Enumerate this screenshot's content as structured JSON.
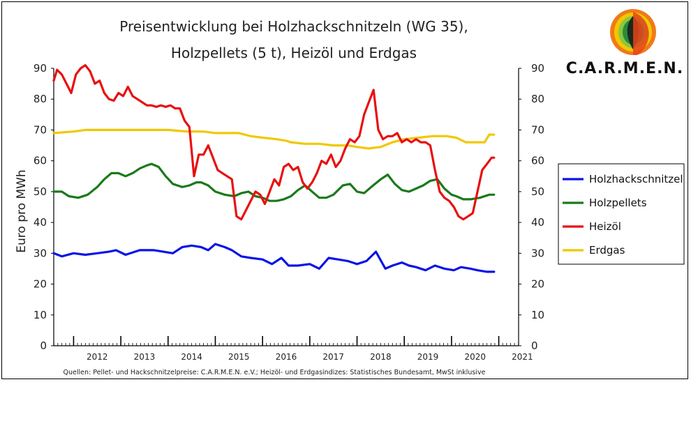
{
  "chart_data": {
    "type": "line",
    "title_lines": [
      "Preisentwicklung bei Holzhackschnitzeln (WG 35),",
      "Holzpellets (5 t), Heizöl und Erdgas"
    ],
    "ylabel": "Euro pro MWh",
    "ylim": [
      0,
      90
    ],
    "yticks": [
      0,
      10,
      20,
      30,
      40,
      50,
      60,
      70,
      80,
      90
    ],
    "xlim": [
      2011.58,
      2021.42
    ],
    "xticks": [
      "2012",
      "2013",
      "2014",
      "2015",
      "2016",
      "2017",
      "2018",
      "2019",
      "2020",
      "2021"
    ],
    "grid": false,
    "legend_position": "right",
    "source": "Quellen: Pellet- und Hackschnitzelpreise: C.A.R.M.E.N. e.V.; Heizöl- und Erdgasindizes: Statistisches Bundesamt, MwSt inklusive",
    "series": [
      {
        "name": "Holzhackschnitzel",
        "color": "#0a14e6",
        "x": [
          2011.58,
          2011.75,
          2012.0,
          2012.25,
          2012.5,
          2012.75,
          2012.9,
          2013.1,
          2013.4,
          2013.7,
          2013.9,
          2014.1,
          2014.3,
          2014.5,
          2014.7,
          2014.85,
          2015.0,
          2015.2,
          2015.35,
          2015.55,
          2015.75,
          2016.0,
          2016.2,
          2016.4,
          2016.55,
          2016.75,
          2017.0,
          2017.2,
          2017.4,
          2017.6,
          2017.8,
          2018.0,
          2018.2,
          2018.4,
          2018.6,
          2018.75,
          2018.95,
          2019.1,
          2019.25,
          2019.45,
          2019.65,
          2019.85,
          2020.05,
          2020.2,
          2020.4,
          2020.55,
          2020.75,
          2020.9
        ],
        "y": [
          30,
          29,
          30,
          29.5,
          30,
          30.5,
          31,
          29.5,
          31,
          31,
          30.5,
          30,
          32,
          32.5,
          32,
          31,
          33,
          32,
          31,
          29,
          28.5,
          28,
          26.5,
          28.5,
          26,
          26,
          26.5,
          25,
          28.5,
          28,
          27.5,
          26.5,
          27.5,
          30.5,
          25,
          26,
          27,
          26,
          25.5,
          24.5,
          26,
          25,
          24.5,
          25.5,
          25,
          24.5,
          24,
          24
        ]
      },
      {
        "name": "Holzpellets",
        "color": "#1a7a1a",
        "x": [
          2011.58,
          2011.75,
          2011.9,
          2012.1,
          2012.3,
          2012.5,
          2012.65,
          2012.8,
          2012.95,
          2013.1,
          2013.25,
          2013.4,
          2013.55,
          2013.65,
          2013.8,
          2013.95,
          2014.1,
          2014.3,
          2014.45,
          2014.6,
          2014.7,
          2014.85,
          2015.0,
          2015.2,
          2015.4,
          2015.55,
          2015.7,
          2015.85,
          2016.0,
          2016.15,
          2016.3,
          2016.45,
          2016.6,
          2016.75,
          2016.9,
          2017.05,
          2017.2,
          2017.35,
          2017.5,
          2017.7,
          2017.85,
          2018.0,
          2018.15,
          2018.3,
          2018.5,
          2018.65,
          2018.8,
          2018.95,
          2019.1,
          2019.25,
          2019.4,
          2019.55,
          2019.7,
          2019.85,
          2020.0,
          2020.1,
          2020.25,
          2020.4,
          2020.6,
          2020.8,
          2020.9
        ],
        "y": [
          50,
          50,
          48.5,
          48,
          49,
          51.5,
          54,
          56,
          56,
          55,
          56,
          57.5,
          58.5,
          59,
          58,
          55,
          52.5,
          51.5,
          52,
          53,
          53,
          52,
          50,
          49,
          48.5,
          49.5,
          50,
          48.5,
          48,
          47,
          47,
          47.5,
          48.5,
          50.5,
          52,
          50,
          48,
          48,
          49,
          52,
          52.5,
          50,
          49.5,
          51.5,
          54,
          55.5,
          52.5,
          50.5,
          50,
          51,
          52,
          53.5,
          54,
          51,
          49,
          48.5,
          47.5,
          47.5,
          48,
          49,
          49
        ]
      },
      {
        "name": "Heizöl",
        "color": "#e81010",
        "x": [
          2011.58,
          2011.65,
          2011.75,
          2011.85,
          2011.95,
          2012.05,
          2012.15,
          2012.25,
          2012.35,
          2012.45,
          2012.55,
          2012.65,
          2012.75,
          2012.85,
          2012.95,
          2013.05,
          2013.15,
          2013.25,
          2013.35,
          2013.45,
          2013.55,
          2013.65,
          2013.75,
          2013.85,
          2013.95,
          2014.05,
          2014.15,
          2014.25,
          2014.35,
          2014.45,
          2014.55,
          2014.65,
          2014.75,
          2014.85,
          2014.95,
          2015.05,
          2015.15,
          2015.25,
          2015.35,
          2015.45,
          2015.55,
          2015.65,
          2015.75,
          2015.85,
          2015.95,
          2016.05,
          2016.15,
          2016.25,
          2016.35,
          2016.45,
          2016.55,
          2016.65,
          2016.75,
          2016.85,
          2016.95,
          2017.05,
          2017.15,
          2017.25,
          2017.35,
          2017.45,
          2017.55,
          2017.65,
          2017.75,
          2017.85,
          2017.95,
          2018.05,
          2018.15,
          2018.25,
          2018.35,
          2018.45,
          2018.55,
          2018.65,
          2018.75,
          2018.85,
          2018.95,
          2019.05,
          2019.15,
          2019.25,
          2019.35,
          2019.45,
          2019.55,
          2019.65,
          2019.75,
          2019.85,
          2019.95,
          2020.05,
          2020.15,
          2020.25,
          2020.35,
          2020.45,
          2020.55,
          2020.65,
          2020.75,
          2020.85,
          2020.9
        ],
        "y": [
          86,
          89.5,
          88,
          85,
          82,
          88,
          90,
          91,
          89,
          85,
          86,
          82,
          80,
          79.5,
          82,
          81,
          84,
          81,
          80,
          79,
          78,
          78,
          77.5,
          78,
          77.5,
          78,
          77,
          77,
          73,
          71,
          55,
          62,
          62,
          65,
          61,
          57,
          56,
          55,
          54,
          42,
          41,
          44,
          47,
          50,
          49,
          46,
          50,
          54,
          52,
          58,
          59,
          57,
          58,
          53,
          51,
          53,
          56,
          60,
          59,
          62,
          58,
          60,
          64,
          67,
          66,
          68,
          75,
          79,
          83,
          70,
          67,
          68,
          68,
          69,
          66,
          67,
          66,
          67,
          66,
          66,
          65,
          57,
          50,
          48,
          47,
          45,
          42,
          41,
          42,
          43,
          50,
          57,
          59,
          61,
          61
        ]
      },
      {
        "name": "Erdgas",
        "color": "#f0c800",
        "x": [
          2011.58,
          2012.0,
          2012.25,
          2012.5,
          2013.0,
          2013.5,
          2014.0,
          2014.4,
          2014.75,
          2015.0,
          2015.5,
          2015.75,
          2016.0,
          2016.3,
          2016.5,
          2016.6,
          2016.9,
          2017.2,
          2017.5,
          2017.8,
          2018.0,
          2018.25,
          2018.5,
          2018.75,
          2019.0,
          2019.3,
          2019.6,
          2019.9,
          2020.1,
          2020.3,
          2020.5,
          2020.7,
          2020.8,
          2020.9
        ],
        "y": [
          69,
          69.5,
          70,
          70,
          70,
          70,
          70,
          69.5,
          69.5,
          69,
          69,
          68,
          67.5,
          67,
          66.5,
          66,
          65.5,
          65.5,
          65,
          65,
          64.5,
          64,
          64.5,
          66,
          67,
          67.5,
          68,
          68,
          67.5,
          66,
          66,
          66,
          68.5,
          68.5
        ]
      }
    ]
  },
  "brand": {
    "name": "C.A.R.M.E.N."
  }
}
